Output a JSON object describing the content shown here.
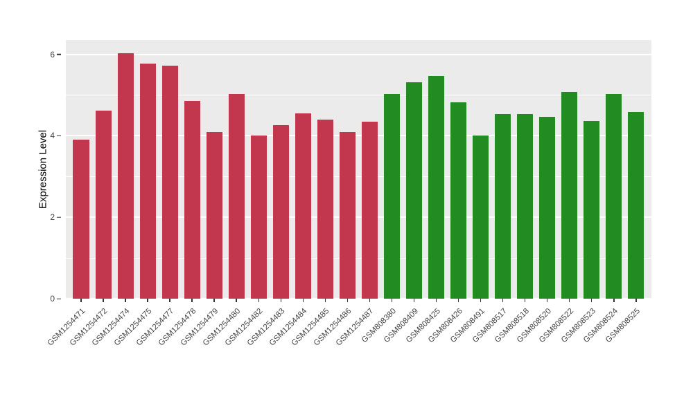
{
  "chart_data": {
    "type": "bar",
    "title": "",
    "xlabel": "",
    "ylabel": "Expression Level",
    "ylim": [
      0,
      6.35
    ],
    "yticks": [
      0,
      2,
      4,
      6
    ],
    "yticks_minor": [
      1,
      3,
      5
    ],
    "grid": "on",
    "legend": "none",
    "panel_background": "#EBEBEB",
    "categories": [
      "GSM1254471",
      "GSM1254472",
      "GSM1254474",
      "GSM1254475",
      "GSM1254477",
      "GSM1254478",
      "GSM1254479",
      "GSM1254480",
      "GSM1254482",
      "GSM1254483",
      "GSM1254484",
      "GSM1254485",
      "GSM1254486",
      "GSM1254487",
      "GSM808380",
      "GSM808409",
      "GSM808425",
      "GSM808426",
      "GSM808491",
      "GSM808517",
      "GSM808518",
      "GSM808520",
      "GSM808522",
      "GSM808523",
      "GSM808524",
      "GSM808525"
    ],
    "values": [
      3.9,
      4.62,
      6.02,
      5.78,
      5.73,
      4.85,
      4.1,
      5.03,
      4.0,
      4.27,
      4.55,
      4.4,
      4.1,
      4.35,
      5.02,
      5.32,
      5.47,
      4.82,
      4.0,
      4.53,
      4.53,
      4.47,
      5.07,
      4.37,
      5.03,
      4.58
    ],
    "group": [
      "red",
      "red",
      "red",
      "red",
      "red",
      "red",
      "red",
      "red",
      "red",
      "red",
      "red",
      "red",
      "red",
      "red",
      "green",
      "green",
      "green",
      "green",
      "green",
      "green",
      "green",
      "green",
      "green",
      "green",
      "green",
      "green"
    ],
    "colors": {
      "red": "#C2374E",
      "green": "#228B22"
    }
  }
}
